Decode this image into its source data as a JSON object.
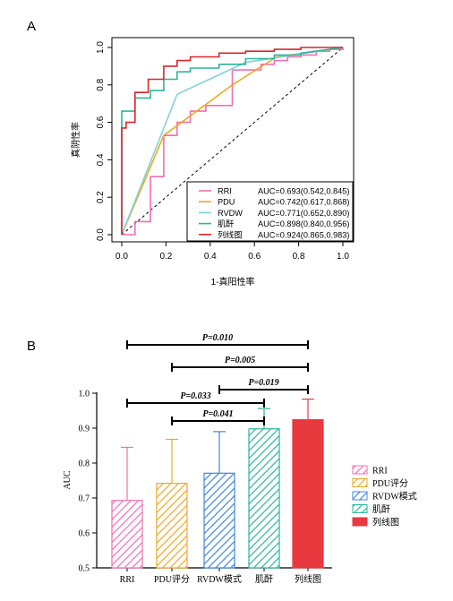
{
  "chart_data": [
    {
      "panel_label": "A",
      "type": "line",
      "subtype": "roc",
      "xlabel": "1-真阳性率",
      "ylabel": "真阴性率",
      "xlim": [
        0,
        1
      ],
      "ylim": [
        0,
        1
      ],
      "xticks": [
        "0.0",
        "0.2",
        "0.4",
        "0.6",
        "0.8",
        "1.0"
      ],
      "yticks": [
        "0.0",
        "0.2",
        "0.4",
        "0.6",
        "0.8",
        "1.0"
      ],
      "grid": false,
      "legend_position": "bottom-right",
      "diagonal_reference": true,
      "series": [
        {
          "name": "RRI",
          "auc_label": "AUC=0.693(0.542,0.845)",
          "color": "#f06fb5",
          "x": [
            0,
            0.06,
            0.06,
            0.13,
            0.13,
            0.19,
            0.19,
            0.25,
            0.25,
            0.31,
            0.31,
            0.38,
            0.38,
            0.5,
            0.5,
            0.63,
            0.63,
            0.69,
            0.69,
            0.75,
            0.75,
            0.81,
            0.81,
            0.88,
            0.88,
            0.94,
            0.94,
            1.0,
            1.0
          ],
          "y": [
            0,
            0,
            0.07,
            0.07,
            0.31,
            0.31,
            0.53,
            0.53,
            0.6,
            0.6,
            0.66,
            0.66,
            0.69,
            0.69,
            0.88,
            0.88,
            0.91,
            0.91,
            0.93,
            0.93,
            0.95,
            0.95,
            0.96,
            0.96,
            0.98,
            0.98,
            0.99,
            0.99,
            1.0
          ]
        },
        {
          "name": "PDU",
          "auc_label": "AUC=0.742(0.617,0.868)",
          "color": "#f0a821",
          "x": [
            0,
            0.19,
            0.5,
            0.7,
            1.0
          ],
          "y": [
            0,
            0.53,
            0.8,
            0.95,
            1.0
          ]
        },
        {
          "name": "RVDW",
          "auc_label": "AUC=0.771(0.652,0.890)",
          "color": "#7fd3dc",
          "x": [
            0,
            0.25,
            0.56,
            1.0
          ],
          "y": [
            0,
            0.75,
            0.92,
            1.0
          ]
        },
        {
          "name": "肌酐",
          "auc_label": "AUC=0.898(0.840,0.956)",
          "color": "#2db59a",
          "x": [
            0,
            0,
            0.06,
            0.06,
            0.13,
            0.13,
            0.19,
            0.19,
            0.25,
            0.25,
            0.31,
            0.31,
            0.44,
            0.44,
            0.56,
            0.56,
            0.69,
            0.69,
            0.81,
            0.81,
            1.0
          ],
          "y": [
            0,
            0.66,
            0.66,
            0.73,
            0.73,
            0.77,
            0.77,
            0.83,
            0.83,
            0.87,
            0.87,
            0.89,
            0.89,
            0.91,
            0.91,
            0.94,
            0.94,
            0.96,
            0.96,
            0.97,
            1.0
          ]
        },
        {
          "name": "列线图",
          "auc_label": "AUC=0.924(0.865,0.983)",
          "color": "#d9262b",
          "x": [
            0,
            0,
            0.02,
            0.02,
            0.06,
            0.06,
            0.12,
            0.12,
            0.19,
            0.19,
            0.25,
            0.25,
            0.31,
            0.31,
            0.44,
            0.44,
            0.56,
            0.56,
            0.69,
            0.69,
            0.81,
            0.81,
            1.0
          ],
          "y": [
            0,
            0.57,
            0.57,
            0.6,
            0.6,
            0.76,
            0.76,
            0.83,
            0.83,
            0.9,
            0.9,
            0.93,
            0.93,
            0.95,
            0.95,
            0.97,
            0.97,
            0.98,
            0.98,
            0.99,
            0.99,
            1.0,
            1.0
          ]
        }
      ]
    },
    {
      "panel_label": "B",
      "type": "bar",
      "ylabel": "AUC",
      "ylim": [
        0.5,
        1.0
      ],
      "yticks": [
        "0.5",
        "0.6",
        "0.7",
        "0.8",
        "0.9",
        "1.0"
      ],
      "categories": [
        "RRI",
        "PDU评分",
        "RVDW模式",
        "肌酐",
        "列线图"
      ],
      "values": [
        0.693,
        0.742,
        0.771,
        0.898,
        0.924
      ],
      "error_upper": [
        0.845,
        0.868,
        0.89,
        0.956,
        0.983
      ],
      "colors": [
        "#f06fb5",
        "#f0a821",
        "#3f86e0",
        "#2db59a",
        "#e8393e"
      ],
      "fill_patterns": [
        "hatch",
        "hatch",
        "hatch",
        "hatch",
        "solid"
      ],
      "legend_labels": [
        "RRI",
        "PDU评分",
        "RVDW模式",
        "肌酐",
        "列线图"
      ],
      "legend_position": "right",
      "significance": [
        {
          "from": 0,
          "to": 4,
          "label": "P=0.010"
        },
        {
          "from": 1,
          "to": 4,
          "label": "P=0.005"
        },
        {
          "from": 2,
          "to": 4,
          "label": "P=0.019"
        },
        {
          "from": 0,
          "to": 3,
          "label": "P=0.033"
        },
        {
          "from": 1,
          "to": 3,
          "label": "P=0.041"
        }
      ]
    }
  ]
}
